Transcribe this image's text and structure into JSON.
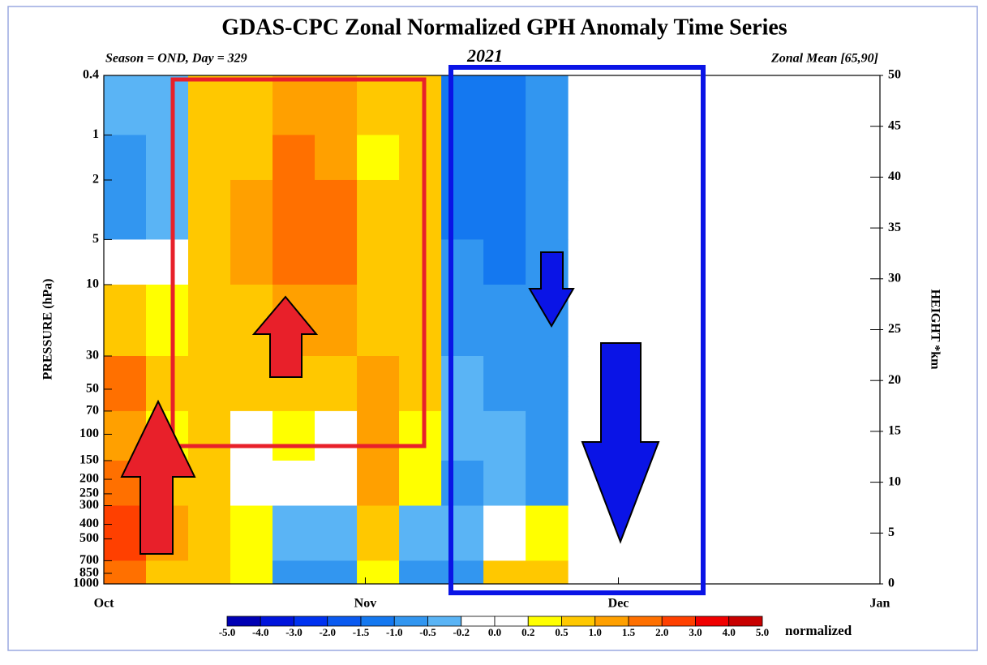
{
  "chart_data": {
    "type": "contour",
    "title": "GDAS-CPC Zonal Normalized GPH Anomaly Time Series",
    "subtitle_left": "Season = OND, Day = 329",
    "subtitle_center": "2021",
    "subtitle_right": "Zonal Mean [65,90]",
    "ylabel": "PRESSURE (hPa)",
    "y2label": "HEIGHT *km",
    "xlim": [
      0,
      92
    ],
    "xticks": [
      {
        "value": 0,
        "label": "Oct"
      },
      {
        "value": 31,
        "label": "Nov"
      },
      {
        "value": 61,
        "label": "Dec"
      },
      {
        "value": 92,
        "label": "Jan"
      }
    ],
    "ylim": [
      1000,
      0.4
    ],
    "yscale": "log",
    "yticks": [
      0.4,
      1,
      2,
      5,
      10,
      30,
      50,
      70,
      100,
      150,
      200,
      250,
      300,
      400,
      500,
      700,
      850,
      1000
    ],
    "y2lim": [
      0,
      50
    ],
    "y2ticks": [
      0,
      5,
      10,
      15,
      20,
      25,
      30,
      35,
      40,
      45,
      50
    ],
    "field": {
      "x_edges": [
        0,
        5,
        10,
        15,
        20,
        25,
        30,
        35,
        40,
        45,
        50,
        55
      ],
      "y_edges": [
        0.4,
        1,
        2,
        5,
        10,
        30,
        70,
        150,
        300,
        700,
        1000
      ],
      "values": [
        [
          -0.5,
          -0.3,
          0.8,
          0.9,
          1.4,
          1.1,
          0.9,
          0.8,
          -1.2,
          -1.2,
          -0.7
        ],
        [
          -0.6,
          -0.4,
          0.8,
          0.9,
          1.6,
          1.2,
          0.4,
          0.8,
          -1.2,
          -1.2,
          -0.8
        ],
        [
          -0.7,
          -0.4,
          0.8,
          1.0,
          1.7,
          1.5,
          0.8,
          0.9,
          -1.2,
          -1.2,
          -0.8
        ],
        [
          0.1,
          -0.2,
          0.8,
          1.1,
          1.8,
          1.6,
          0.9,
          0.9,
          -0.8,
          -1.2,
          -0.8
        ],
        [
          0.6,
          0.4,
          0.7,
          0.9,
          1.3,
          1.1,
          0.9,
          0.8,
          -0.6,
          -0.6,
          -0.7
        ],
        [
          1.5,
          0.7,
          0.7,
          0.6,
          0.9,
          0.7,
          1.2,
          0.6,
          -0.3,
          -0.6,
          -0.7
        ],
        [
          1.2,
          0.4,
          0.6,
          0.1,
          0.3,
          0.1,
          1.1,
          0.4,
          -0.4,
          -0.4,
          -0.6
        ],
        [
          1.8,
          0.6,
          0.6,
          0.1,
          0.1,
          0.1,
          1.1,
          0.3,
          -0.6,
          -0.3,
          -0.6
        ],
        [
          2.5,
          1.1,
          0.6,
          0.3,
          -0.3,
          -0.4,
          0.6,
          -0.5,
          -0.5,
          0.1,
          0.3
        ],
        [
          1.6,
          0.8,
          0.8,
          0.3,
          -0.7,
          -0.6,
          0.4,
          -0.8,
          -0.6,
          0.6,
          0.8
        ]
      ]
    },
    "colorbar": {
      "levels": [
        {
          "value": -5,
          "label": "-5.0"
        },
        {
          "value": -4,
          "label": "-4.0"
        },
        {
          "value": -3,
          "label": "-3.0"
        },
        {
          "value": -2,
          "label": "-2.0"
        },
        -1.5,
        {
          "value": -1,
          "label": "-1.0"
        },
        -0.5,
        -0.2,
        {
          "value": 0,
          "label": "0.0"
        },
        0.2,
        0.5,
        {
          "value": 1,
          "label": "1.0"
        },
        1.5,
        {
          "value": 2,
          "label": "2.0"
        },
        {
          "value": 3,
          "label": "3.0"
        },
        {
          "value": 4,
          "label": "4.0"
        },
        {
          "value": 5,
          "label": "5.0"
        }
      ],
      "colors": [
        "#0000b4",
        "#0014dc",
        "#0032f0",
        "#0a5af0",
        "#1478f0",
        "#3296f0",
        "#5ab4f5",
        "#ffffff",
        "#ffffff",
        "#ffff00",
        "#ffc800",
        "#ffa000",
        "#ff7000",
        "#ff4000",
        "#f00000",
        "#c80000"
      ],
      "label": "normalized"
    }
  }
}
